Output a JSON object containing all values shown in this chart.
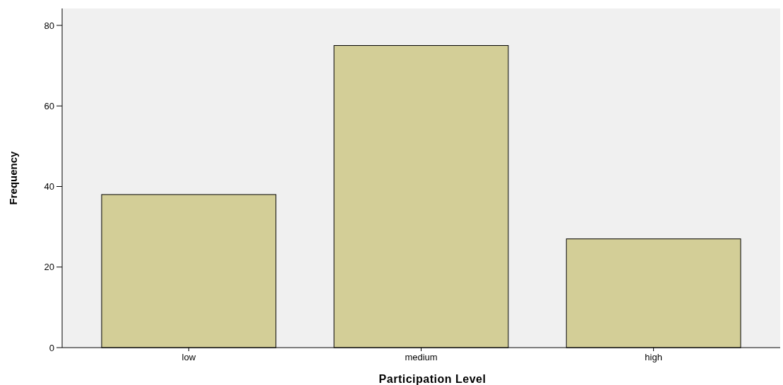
{
  "chart_data": {
    "type": "bar",
    "xlabel": "Participation Level",
    "ylabel": "Frequency",
    "categories": [
      "low",
      "medium",
      "high"
    ],
    "values": [
      38,
      75,
      27
    ],
    "color": "#d3ce97",
    "ylim": [
      0,
      84.2
    ],
    "yticks": [
      0,
      20,
      40,
      60,
      80
    ],
    "grid": false
  }
}
